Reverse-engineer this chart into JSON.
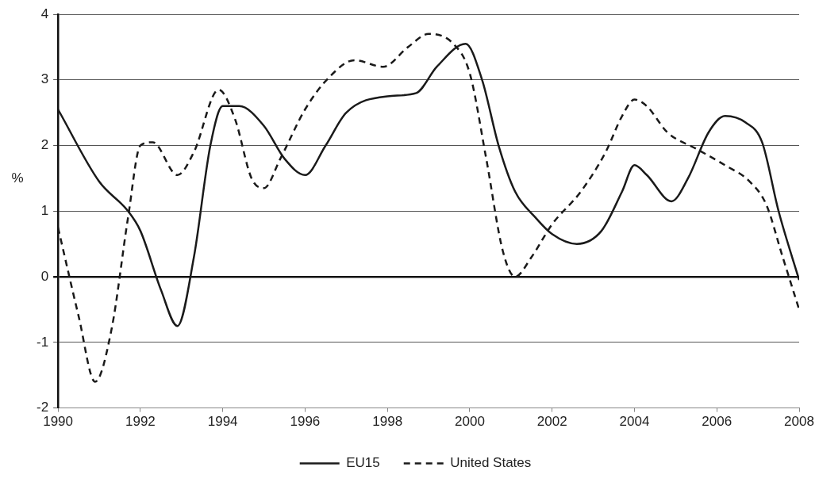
{
  "chart_data": {
    "type": "line",
    "ylabel": "%",
    "xlim": [
      1990,
      2008
    ],
    "xticks": [
      1990,
      1992,
      1994,
      1996,
      1998,
      2000,
      2002,
      2004,
      2006,
      2008
    ],
    "ylim": [
      -2,
      4
    ],
    "yticks": [
      -2,
      -1,
      0,
      1,
      2,
      3,
      4
    ],
    "grid": "y",
    "legend": "bottom",
    "marker": "none",
    "series": [
      {
        "name": "EU15",
        "color": "#1a1a1a",
        "line_style": "solid",
        "x": [
          1990,
          1991,
          1991.7,
          1992,
          1992.5,
          1992.9,
          1993.3,
          1993.7,
          1994,
          1994.4,
          1995,
          1995.5,
          1996,
          1996.5,
          1997,
          1998,
          1998.7,
          1999.2,
          1999.9,
          2000.3,
          2000.7,
          2001.1,
          2001.6,
          2002,
          2002.6,
          2003.2,
          2003.7,
          2004,
          2004.3,
          2004.9,
          2005.3,
          2005.8,
          2006.2,
          2006.7,
          2007.1,
          2007.5,
          2008
        ],
        "values": [
          2.55,
          1.45,
          1.0,
          0.7,
          -0.2,
          -0.75,
          0.3,
          2.0,
          2.6,
          2.6,
          2.3,
          1.8,
          1.55,
          2.0,
          2.5,
          2.75,
          2.8,
          3.2,
          3.55,
          3.0,
          2.0,
          1.3,
          0.9,
          0.65,
          0.5,
          0.7,
          1.3,
          1.7,
          1.55,
          1.15,
          1.5,
          2.2,
          2.45,
          2.35,
          2.05,
          1.0,
          -0.05
        ]
      },
      {
        "name": "United States",
        "color": "#1a1a1a",
        "line_style": "dashed",
        "x": [
          1990,
          1990.5,
          1990.9,
          1991.3,
          1991.7,
          1992,
          1992.3,
          1992.9,
          1993.3,
          1993.9,
          1994.3,
          1994.7,
          1995,
          1995.4,
          1996,
          1996.6,
          1997.2,
          1997.9,
          1998.5,
          1999,
          1999.6,
          2000,
          2000.4,
          2000.8,
          2001.1,
          2001.5,
          2002,
          2002.7,
          2003.3,
          2003.7,
          2004,
          2004.3,
          2004.8,
          2005.5,
          2006.2,
          2006.8,
          2007.2,
          2007.6,
          2008
        ],
        "values": [
          0.75,
          -0.6,
          -1.6,
          -0.8,
          0.9,
          2.0,
          2.05,
          1.55,
          1.9,
          2.85,
          2.4,
          1.5,
          1.35,
          1.8,
          2.55,
          3.05,
          3.3,
          3.2,
          3.5,
          3.7,
          3.55,
          3.1,
          1.8,
          0.4,
          0.0,
          0.3,
          0.8,
          1.3,
          1.9,
          2.45,
          2.7,
          2.6,
          2.2,
          1.95,
          1.7,
          1.45,
          1.1,
          0.3,
          -0.5
        ]
      }
    ]
  }
}
